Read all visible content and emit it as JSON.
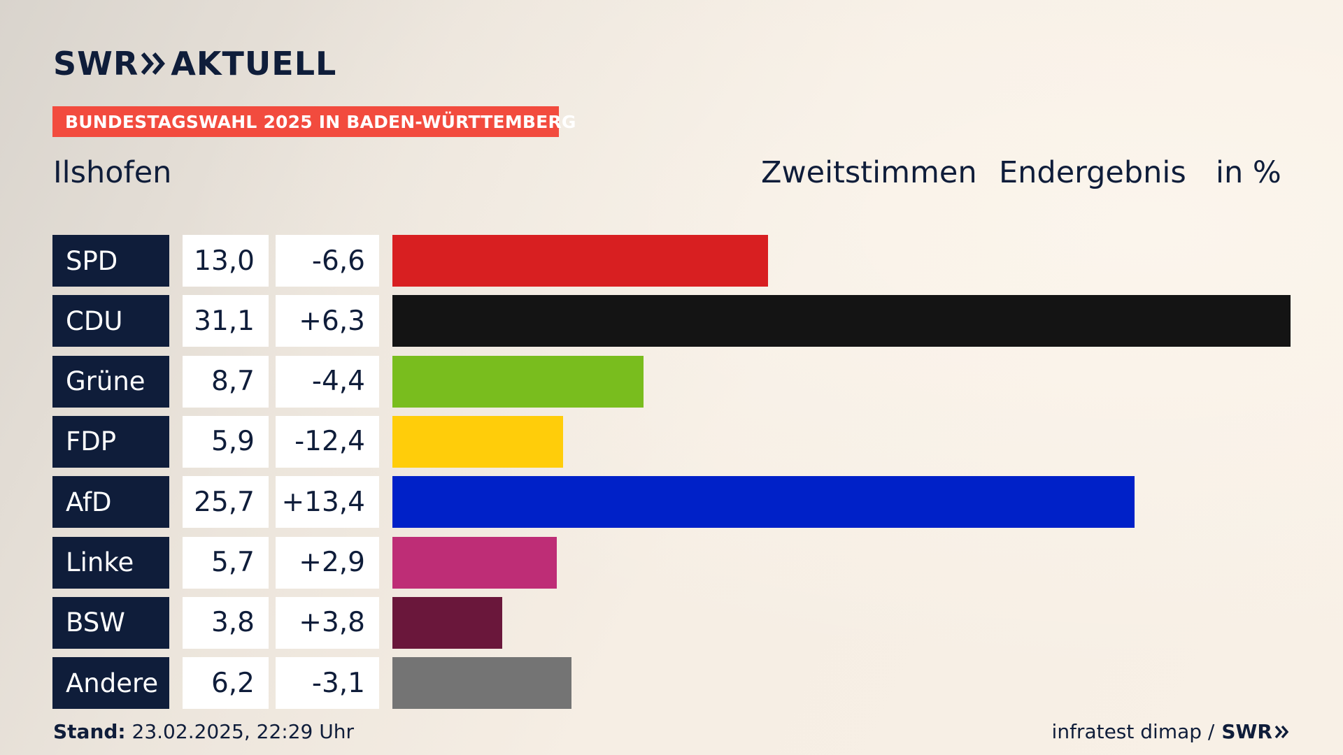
{
  "header": {
    "logo_left": "SWR",
    "logo_right": "AKTUELL",
    "badge": "BUNDESTAGSWAHL 2025 IN BADEN-WÜRTTEMBERG",
    "place": "Ilshofen",
    "col_label_1": "Zweitstimmen",
    "col_label_2": "Endergebnis",
    "col_label_3": "in %"
  },
  "chart_data": {
    "type": "bar",
    "orientation": "horizontal",
    "categories": [
      "SPD",
      "CDU",
      "Grüne",
      "FDP",
      "AfD",
      "Linke",
      "BSW",
      "Andere"
    ],
    "values": [
      13.0,
      31.1,
      8.7,
      5.9,
      25.7,
      5.7,
      3.8,
      6.2
    ],
    "values_display": [
      "13,0",
      "31,1",
      "8,7",
      "5,9",
      "25,7",
      "5,7",
      "3,8",
      "6,2"
    ],
    "changes_display": [
      "-6,6",
      "+6,3",
      "-4,4",
      "-12,4",
      "+13,4",
      "+2,9",
      "+3,8",
      "-3,1"
    ],
    "colors": [
      "#d81f21",
      "#141414",
      "#79bd1e",
      "#ffcd0a",
      "#0021c8",
      "#be2d76",
      "#6a173b",
      "#747474"
    ],
    "xlim": [
      0,
      31.1
    ]
  },
  "footer": {
    "stand_label": "Stand:",
    "stand_value": "23.02.2025, 22:29 Uhr",
    "source": "infratest dimap /",
    "source_logo": "SWR"
  }
}
